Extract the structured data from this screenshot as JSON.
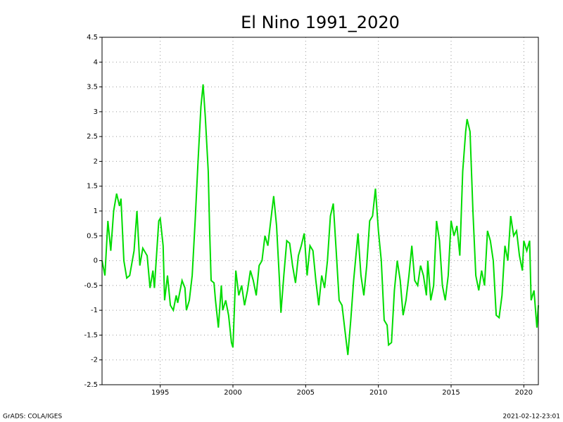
{
  "chart_data": {
    "type": "line",
    "title": "El Nino 1991_2020",
    "footer_left": "GrADS: COLA/IGES",
    "footer_right": "2021-02-12-23:01",
    "color": "#00dc00",
    "grid": true,
    "xlim": [
      1991,
      2021
    ],
    "xticks": [
      1995,
      2000,
      2005,
      2010,
      2015,
      2020
    ],
    "ylim": [
      -2.5,
      4.5
    ],
    "yticks": [
      -2.5,
      -2,
      -1.5,
      -1,
      -0.5,
      0,
      0.5,
      1,
      1.5,
      2,
      2.5,
      3,
      3.5,
      4,
      4.5
    ],
    "x": [
      1991.0,
      1991.2,
      1991.4,
      1991.6,
      1991.8,
      1992.0,
      1992.2,
      1992.3,
      1992.5,
      1992.7,
      1992.9,
      1993.2,
      1993.4,
      1993.6,
      1993.8,
      1994.1,
      1994.3,
      1994.5,
      1994.6,
      1994.9,
      1995.0,
      1995.2,
      1995.3,
      1995.5,
      1995.7,
      1995.9,
      1996.1,
      1996.2,
      1996.5,
      1996.7,
      1996.8,
      1997.0,
      1997.2,
      1997.4,
      1997.6,
      1997.8,
      1997.95,
      1998.1,
      1998.3,
      1998.4,
      1998.5,
      1998.7,
      1998.8,
      1999.0,
      1999.2,
      1999.3,
      1999.5,
      1999.7,
      1999.9,
      2000.0,
      2000.2,
      2000.4,
      2000.6,
      2000.8,
      2001.0,
      2001.2,
      2001.4,
      2001.6,
      2001.8,
      2002.0,
      2002.2,
      2002.4,
      2002.6,
      2002.8,
      2003.0,
      2003.2,
      2003.3,
      2003.5,
      2003.7,
      2003.9,
      2004.1,
      2004.3,
      2004.5,
      2004.7,
      2004.9,
      2005.1,
      2005.3,
      2005.5,
      2005.7,
      2005.9,
      2006.1,
      2006.3,
      2006.5,
      2006.7,
      2006.9,
      2007.1,
      2007.3,
      2007.5,
      2007.7,
      2007.9,
      2008.1,
      2008.3,
      2008.6,
      2008.8,
      2009.0,
      2009.2,
      2009.4,
      2009.6,
      2009.8,
      2010.0,
      2010.2,
      2010.4,
      2010.6,
      2010.7,
      2010.9,
      2011.1,
      2011.3,
      2011.5,
      2011.7,
      2011.9,
      2012.1,
      2012.3,
      2012.5,
      2012.7,
      2012.9,
      2013.1,
      2013.3,
      2013.4,
      2013.6,
      2013.8,
      2014.0,
      2014.2,
      2014.4,
      2014.6,
      2014.8,
      2015.0,
      2015.2,
      2015.4,
      2015.6,
      2015.8,
      2016.0,
      2016.1,
      2016.3,
      2016.5,
      2016.7,
      2016.9,
      2017.1,
      2017.3,
      2017.5,
      2017.7,
      2017.9,
      2018.1,
      2018.3,
      2018.5,
      2018.7,
      2018.9,
      2019.1,
      2019.3,
      2019.5,
      2019.7,
      2019.9,
      2020.0,
      2020.2,
      2020.4,
      2020.5,
      2020.7,
      2020.9,
      2021.0
    ],
    "values": [
      0.0,
      -0.3,
      0.8,
      0.2,
      1.0,
      1.35,
      1.1,
      1.25,
      0.0,
      -0.35,
      -0.3,
      0.2,
      1.0,
      -0.1,
      0.25,
      0.1,
      -0.55,
      -0.2,
      -0.55,
      0.8,
      0.85,
      0.3,
      -0.8,
      -0.3,
      -0.9,
      -1.0,
      -0.7,
      -0.85,
      -0.4,
      -0.55,
      -1.0,
      -0.8,
      -0.3,
      0.8,
      2.0,
      3.1,
      3.55,
      2.9,
      1.8,
      0.6,
      -0.4,
      -0.45,
      -0.8,
      -1.35,
      -0.5,
      -1.0,
      -0.8,
      -1.1,
      -1.65,
      -1.75,
      -0.2,
      -0.7,
      -0.5,
      -0.9,
      -0.6,
      -0.2,
      -0.4,
      -0.7,
      -0.1,
      0.0,
      0.5,
      0.3,
      0.8,
      1.3,
      0.7,
      -0.4,
      -1.05,
      -0.3,
      0.4,
      0.35,
      -0.1,
      -0.45,
      0.1,
      0.3,
      0.55,
      -0.3,
      0.3,
      0.2,
      -0.4,
      -0.9,
      -0.3,
      -0.55,
      0.0,
      0.9,
      1.15,
      0.2,
      -0.8,
      -0.9,
      -1.4,
      -1.9,
      -1.2,
      -0.4,
      0.55,
      -0.3,
      -0.7,
      -0.1,
      0.8,
      0.9,
      1.45,
      0.6,
      0.0,
      -1.2,
      -1.3,
      -1.7,
      -1.65,
      -0.6,
      0.0,
      -0.4,
      -1.1,
      -0.8,
      -0.3,
      0.3,
      -0.4,
      -0.5,
      -0.1,
      -0.3,
      -0.7,
      0.0,
      -0.8,
      -0.5,
      0.8,
      0.4,
      -0.5,
      -0.8,
      -0.3,
      0.8,
      0.5,
      0.7,
      0.1,
      1.8,
      2.6,
      2.85,
      2.6,
      1.0,
      -0.3,
      -0.6,
      -0.2,
      -0.5,
      0.6,
      0.4,
      0.0,
      -1.1,
      -1.15,
      -0.7,
      0.3,
      0.0,
      0.9,
      0.5,
      0.6,
      0.1,
      -0.2,
      0.4,
      0.2,
      0.4,
      -0.8,
      -0.6,
      -1.35,
      -0.9
    ]
  }
}
